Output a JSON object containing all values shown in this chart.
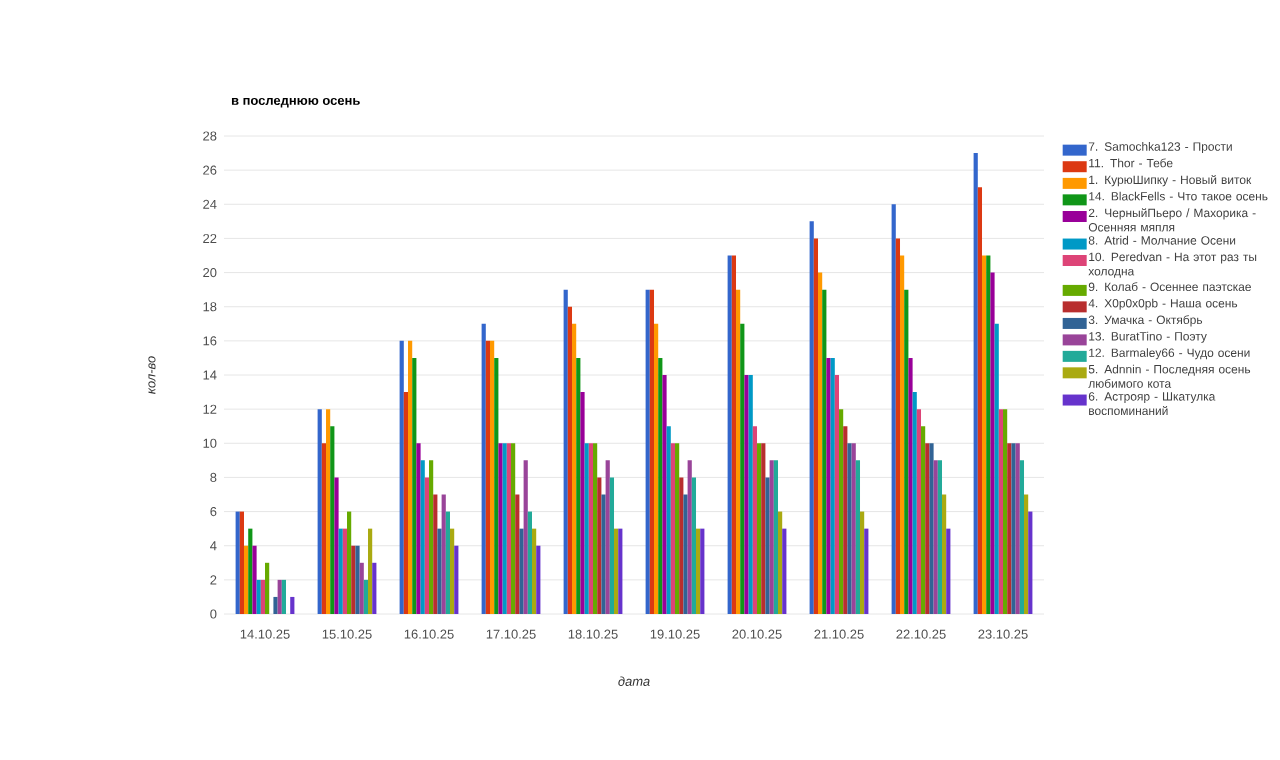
{
  "chart_data": {
    "type": "bar",
    "title": "в последнюю осень",
    "xlabel": "дата",
    "ylabel": "кол-во",
    "categories": [
      "14.10.25",
      "15.10.25",
      "16.10.25",
      "17.10.25",
      "18.10.25",
      "19.10.25",
      "20.10.25",
      "21.10.25",
      "22.10.25",
      "23.10.25"
    ],
    "ylim": [
      0,
      28
    ],
    "yticks": [
      0,
      2,
      4,
      6,
      8,
      10,
      12,
      14,
      16,
      18,
      20,
      22,
      24,
      26,
      28
    ],
    "grid": "y",
    "legend": "right",
    "series": [
      {
        "name": "7. Samochka123 - Прости",
        "color": "#3366cc",
        "values": [
          6,
          12,
          16,
          17,
          19,
          19,
          21,
          23,
          24,
          27
        ]
      },
      {
        "name": "11. Thor - Тебе",
        "color": "#dc3912",
        "values": [
          6,
          10,
          13,
          16,
          18,
          19,
          21,
          22,
          22,
          25
        ]
      },
      {
        "name": "1. КурюШипку - Новый виток",
        "color": "#ff9900",
        "values": [
          4,
          12,
          16,
          16,
          17,
          17,
          19,
          20,
          21,
          21
        ]
      },
      {
        "name": "14. BlackFells - Что такое осень",
        "color": "#109618",
        "values": [
          5,
          11,
          15,
          15,
          15,
          15,
          17,
          19,
          19,
          21
        ]
      },
      {
        "name": "2. ЧерныйПьеро / Махорика - Осенняя мяпля",
        "color": "#990099",
        "values": [
          4,
          8,
          10,
          10,
          13,
          14,
          14,
          15,
          15,
          20
        ]
      },
      {
        "name": "8. Atrid - Молчание Осени",
        "color": "#0099c6",
        "values": [
          2,
          5,
          9,
          10,
          10,
          11,
          14,
          15,
          13,
          17
        ]
      },
      {
        "name": "10. Peredvan - На этот раз ты холодна",
        "color": "#dd4477",
        "values": [
          2,
          5,
          8,
          10,
          10,
          10,
          11,
          14,
          12,
          12
        ]
      },
      {
        "name": "9. Колаб - Осеннее паэтскае",
        "color": "#66aa00",
        "values": [
          3,
          6,
          9,
          10,
          10,
          10,
          10,
          12,
          11,
          12
        ]
      },
      {
        "name": "4. X0p0x0pb - Наша осень",
        "color": "#b82e2e",
        "values": [
          0,
          4,
          7,
          7,
          8,
          8,
          10,
          11,
          10,
          10
        ]
      },
      {
        "name": "3. Умачка - Октябрь",
        "color": "#316395",
        "values": [
          1,
          4,
          5,
          5,
          7,
          7,
          8,
          10,
          10,
          10
        ]
      },
      {
        "name": "13. BuratTino - Поэту",
        "color": "#994499",
        "values": [
          2,
          3,
          7,
          9,
          9,
          9,
          9,
          10,
          9,
          10
        ]
      },
      {
        "name": "12. Barmaley66 - Чудо осени",
        "color": "#22aa99",
        "values": [
          2,
          2,
          6,
          6,
          8,
          8,
          9,
          9,
          9,
          9
        ]
      },
      {
        "name": "5. Adnnin - Последняя осень любимого кота",
        "color": "#aaaa11",
        "values": [
          0,
          5,
          5,
          5,
          5,
          5,
          6,
          6,
          7,
          7
        ]
      },
      {
        "name": "6. Астрояр - Шкатулка воспоминаний",
        "color": "#6633cc",
        "values": [
          1,
          3,
          4,
          4,
          5,
          5,
          5,
          5,
          5,
          6
        ]
      }
    ]
  }
}
